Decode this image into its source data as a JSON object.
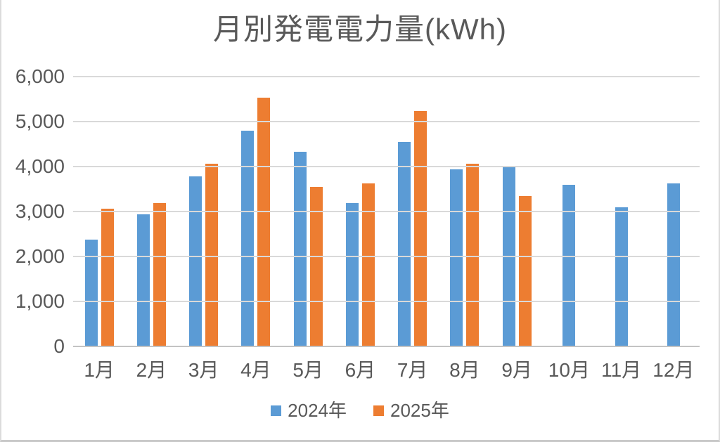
{
  "chart_data": {
    "type": "bar",
    "title": "月別発電電力量(kWh)",
    "categories": [
      "1月",
      "2月",
      "3月",
      "4月",
      "5月",
      "6月",
      "7月",
      "8月",
      "9月",
      "10月",
      "11月",
      "12月"
    ],
    "series": [
      {
        "name": "2024年",
        "color": "#5B9BD5",
        "values": [
          2380,
          2930,
          3780,
          4790,
          4330,
          3190,
          4550,
          3940,
          3990,
          3590,
          3090,
          3620
        ]
      },
      {
        "name": "2025年",
        "color": "#ED7D31",
        "values": [
          3070,
          3190,
          4060,
          5530,
          3540,
          3620,
          5240,
          4070,
          3350,
          null,
          null,
          null
        ]
      }
    ],
    "xlabel": "",
    "ylabel": "",
    "ylim": [
      0,
      6000
    ],
    "ytick_interval": 1000,
    "ytick_labels": [
      "0",
      "1,000",
      "2,000",
      "3,000",
      "4,000",
      "5,000",
      "6,000"
    ],
    "grid": true,
    "legend_position": "bottom"
  },
  "colors": {
    "series_2024": "#5B9BD5",
    "series_2025": "#ED7D31",
    "gridline": "#D9D9D9",
    "axis_line": "#C3C3C3",
    "text": "#595959",
    "background": "#FFFFFF"
  }
}
